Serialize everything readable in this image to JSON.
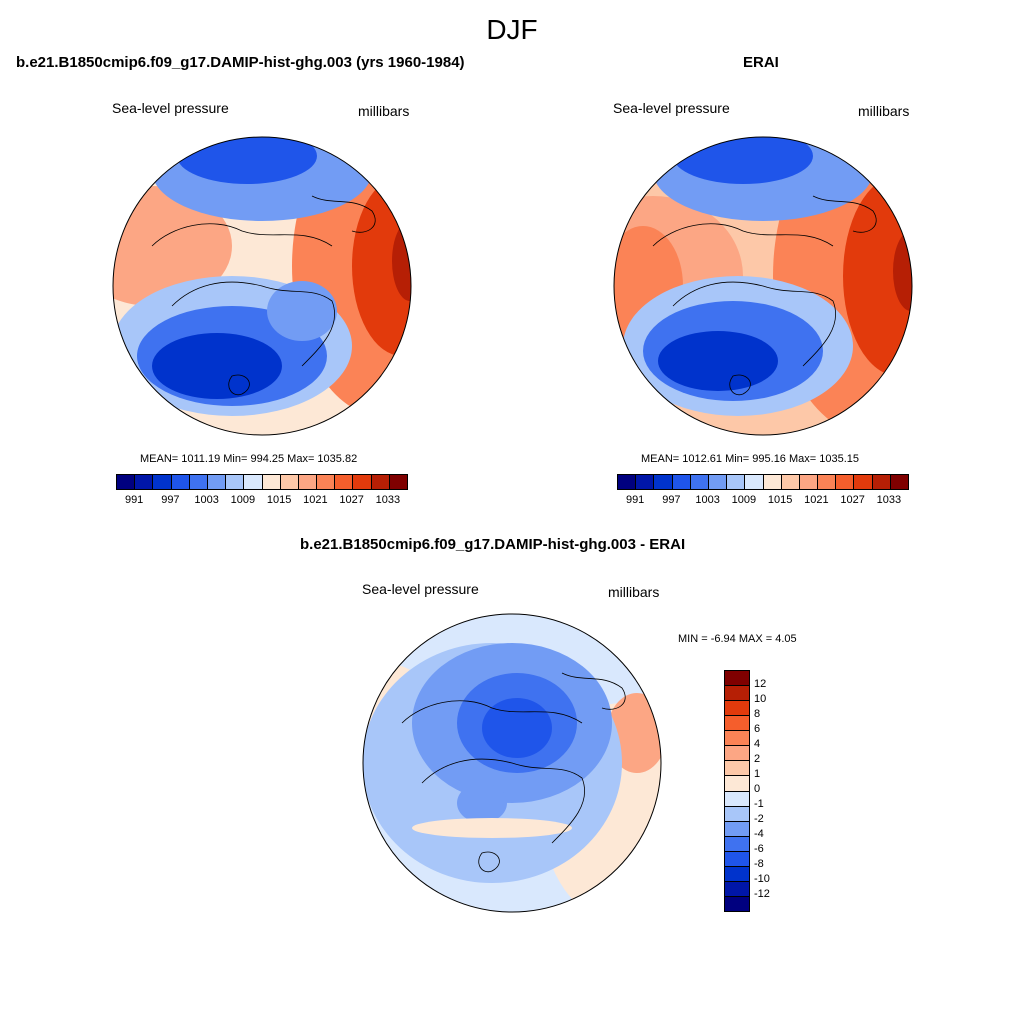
{
  "title": "DJF",
  "panels": [
    {
      "title": "b.e21.B1850cmip6.f09_g17.DAMIP-hist-ghg.003 (yrs 1960-1984)",
      "left_label": "Sea-level pressure",
      "right_label": "millibars",
      "stats": "MEAN= 1011.19  Min= 994.25  Max= 1035.82"
    },
    {
      "title": "ERAI",
      "left_label": "Sea-level pressure",
      "right_label": "millibars",
      "stats": "MEAN= 1012.61  Min= 995.16  Max= 1035.15"
    },
    {
      "title": "b.e21.B1850cmip6.f09_g17.DAMIP-hist-ghg.003 - ERAI",
      "left_label": "Sea-level pressure",
      "right_label": "millibars",
      "stats": "MIN =  -6.94 MAX =   4.05"
    }
  ],
  "abs_colorbar": {
    "colors": [
      "#00007f",
      "#0016a8",
      "#0033cc",
      "#1f55ea",
      "#3f72f0",
      "#729cf4",
      "#a8c6f9",
      "#d9e8fd",
      "#fde8d6",
      "#fdc8a8",
      "#fca684",
      "#fb8356",
      "#f55e2c",
      "#e23a0c",
      "#b61f05",
      "#7f0000"
    ],
    "tick_labels": [
      "991",
      "997",
      "1003",
      "1009",
      "1015",
      "1021",
      "1027",
      "1033"
    ]
  },
  "diff_colorbar": {
    "colors": [
      "#7f0000",
      "#b61f05",
      "#e23a0c",
      "#f55e2c",
      "#fb8356",
      "#fca684",
      "#fdc8a8",
      "#fde8d6",
      "#d9e8fd",
      "#a8c6f9",
      "#729cf4",
      "#3f72f0",
      "#1f55ea",
      "#0033cc",
      "#0016a8",
      "#00007f"
    ],
    "tick_labels": [
      "12",
      "10",
      "8",
      "6",
      "4",
      "2",
      "1",
      "0",
      "-1",
      "-2",
      "-4",
      "-6",
      "-8",
      "-10",
      "-12"
    ]
  }
}
